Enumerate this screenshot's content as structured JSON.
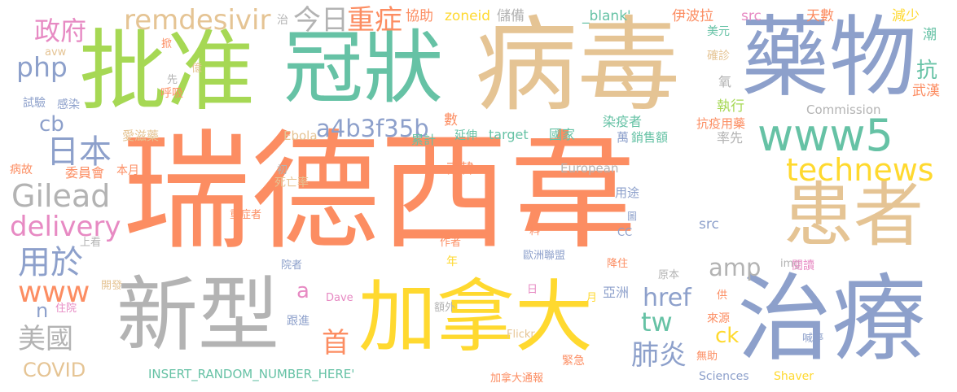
{
  "palette": {
    "orange": "#fc8d62",
    "teal": "#66c2a5",
    "blue": "#8da0cb",
    "pink": "#e78ac3",
    "green": "#a6d854",
    "yellow": "#ffd92f",
    "tan": "#e5c494",
    "gray": "#b3b3b3"
  },
  "words": [
    {
      "text": "瑞德西韋",
      "color": "orange"
    },
    {
      "text": "病毒",
      "color": "tan"
    },
    {
      "text": "批准",
      "color": "green"
    },
    {
      "text": "冠狀",
      "color": "teal"
    },
    {
      "text": "藥物",
      "color": "blue"
    },
    {
      "text": "治療",
      "color": "blue"
    },
    {
      "text": "新型",
      "color": "gray"
    },
    {
      "text": "加拿大",
      "color": "yellow"
    },
    {
      "text": "患者",
      "color": "tan"
    },
    {
      "text": "www5",
      "color": "teal"
    },
    {
      "text": "technews",
      "color": "yellow"
    },
    {
      "text": "remdesivir",
      "color": "tan"
    },
    {
      "text": "a4b3f35b",
      "color": "blue"
    },
    {
      "text": "Gilead",
      "color": "gray"
    },
    {
      "text": "delivery",
      "color": "pink"
    },
    {
      "text": "php",
      "color": "blue"
    },
    {
      "text": "政府",
      "color": "pink"
    },
    {
      "text": "今日",
      "color": "gray"
    },
    {
      "text": "重症",
      "color": "orange"
    },
    {
      "text": "日本",
      "color": "blue"
    },
    {
      "text": "用於",
      "color": "blue"
    },
    {
      "text": "www",
      "color": "orange"
    },
    {
      "text": "美國",
      "color": "gray"
    },
    {
      "text": "COVID",
      "color": "tan"
    },
    {
      "text": "cb",
      "color": "blue"
    },
    {
      "text": "href",
      "color": "blue"
    },
    {
      "text": "tw",
      "color": "teal"
    },
    {
      "text": "amp",
      "color": "gray"
    },
    {
      "text": "肺炎",
      "color": "blue"
    },
    {
      "text": "首",
      "color": "orange"
    },
    {
      "text": "ck",
      "color": "yellow"
    },
    {
      "text": "抗",
      "color": "teal"
    },
    {
      "text": "a",
      "color": "pink"
    },
    {
      "text": "n",
      "color": "blue"
    },
    {
      "text": "zoneid",
      "color": "yellow"
    },
    {
      "text": "_blank'",
      "color": "teal"
    },
    {
      "text": "伊波拉",
      "color": "orange"
    },
    {
      "text": "src",
      "color": "pink"
    },
    {
      "text": "天數",
      "color": "orange"
    },
    {
      "text": "減少",
      "color": "yellow"
    },
    {
      "text": "潮",
      "color": "teal"
    },
    {
      "text": "武漢",
      "color": "orange"
    },
    {
      "text": "美元",
      "color": "teal"
    },
    {
      "text": "確診",
      "color": "tan"
    },
    {
      "text": "氧",
      "color": "gray"
    },
    {
      "text": "執行",
      "color": "green"
    },
    {
      "text": "Commission",
      "color": "gray"
    },
    {
      "text": "抗疫用藥",
      "color": "orange"
    },
    {
      "text": "率先",
      "color": "gray"
    },
    {
      "text": "萬",
      "color": "blue"
    },
    {
      "text": "銷售額",
      "color": "teal"
    },
    {
      "text": "染疫者",
      "color": "teal"
    },
    {
      "text": "target",
      "color": "teal"
    },
    {
      "text": "國家",
      "color": "teal"
    },
    {
      "text": "延伸",
      "color": "teal"
    },
    {
      "text": "累計",
      "color": "teal"
    },
    {
      "text": "數",
      "color": "orange"
    },
    {
      "text": "European",
      "color": "gray"
    },
    {
      "text": "南韓",
      "color": "orange"
    },
    {
      "text": "Ebola",
      "color": "tan"
    },
    {
      "text": "愛滋藥",
      "color": "tan"
    },
    {
      "text": "感染",
      "color": "blue"
    },
    {
      "text": "試驗",
      "color": "blue"
    },
    {
      "text": "呼吸",
      "color": "orange"
    },
    {
      "text": "avw",
      "color": "tan"
    },
    {
      "text": "治",
      "color": "gray"
    },
    {
      "text": "協助",
      "color": "orange"
    },
    {
      "text": "儲備",
      "color": "gray"
    },
    {
      "text": "掀",
      "color": "orange"
    },
    {
      "text": "億",
      "color": "tan"
    },
    {
      "text": "先",
      "color": "gray"
    },
    {
      "text": "病故",
      "color": "orange"
    },
    {
      "text": "委員會",
      "color": "orange"
    },
    {
      "text": "本月",
      "color": "orange"
    },
    {
      "text": "初",
      "color": "gray"
    },
    {
      "text": "死亡率",
      "color": "tan"
    },
    {
      "text": "用途",
      "color": "blue"
    },
    {
      "text": "圖",
      "color": "blue"
    },
    {
      "text": "重症者",
      "color": "orange"
    },
    {
      "text": "料",
      "color": "orange"
    },
    {
      "text": "CC",
      "color": "blue"
    },
    {
      "text": "src",
      "color": "blue"
    },
    {
      "text": "上看",
      "color": "gray"
    },
    {
      "text": "作者",
      "color": "orange"
    },
    {
      "text": "年",
      "color": "yellow"
    },
    {
      "text": "歐洲聯盟",
      "color": "blue"
    },
    {
      "text": "降住",
      "color": "orange"
    },
    {
      "text": "原本",
      "color": "gray"
    },
    {
      "text": "img",
      "color": "gray"
    },
    {
      "text": "閱讀",
      "color": "pink"
    },
    {
      "text": "院者",
      "color": "blue"
    },
    {
      "text": "開發",
      "color": "tan"
    },
    {
      "text": "亞洲",
      "color": "blue"
    },
    {
      "text": "額外",
      "color": "gray"
    },
    {
      "text": "供",
      "color": "orange"
    },
    {
      "text": "住院",
      "color": "pink"
    },
    {
      "text": "Dave",
      "color": "pink"
    },
    {
      "text": "日",
      "color": "pink"
    },
    {
      "text": "月",
      "color": "yellow"
    },
    {
      "text": "跟進",
      "color": "blue"
    },
    {
      "text": "來源",
      "color": "orange"
    },
    {
      "text": "喊停",
      "color": "blue"
    },
    {
      "text": "Flickr",
      "color": "tan"
    },
    {
      "text": "緊急",
      "color": "orange"
    },
    {
      "text": "無助",
      "color": "orange"
    },
    {
      "text": "INSERT_RANDOM_NUMBER_HERE'",
      "color": "teal"
    },
    {
      "text": "加拿大通報",
      "color": "orange"
    },
    {
      "text": "Sciences",
      "color": "blue"
    },
    {
      "text": "Shaver",
      "color": "yellow"
    }
  ]
}
